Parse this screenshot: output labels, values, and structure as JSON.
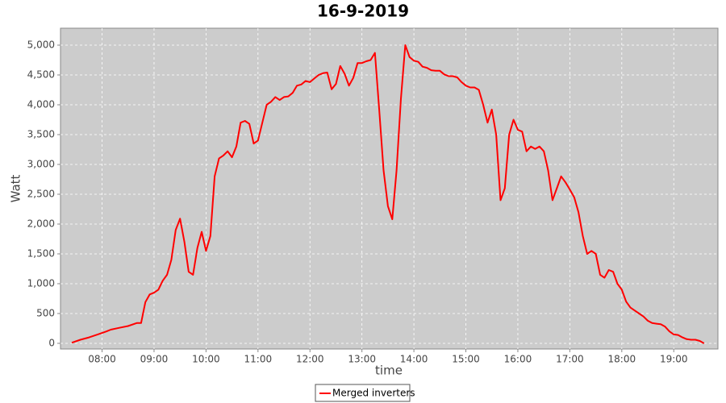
{
  "chart_data": {
    "type": "line",
    "title": "16-9-2019",
    "x_label": "time",
    "y_label": "Watt",
    "x": [
      "07:25",
      "07:35",
      "07:45",
      "07:55",
      "08:05",
      "08:10",
      "08:20",
      "08:30",
      "08:40",
      "08:45",
      "08:50",
      "08:55",
      "09:00",
      "09:05",
      "09:10",
      "09:15",
      "09:20",
      "09:25",
      "09:30",
      "09:35",
      "09:40",
      "09:45",
      "09:50",
      "09:55",
      "10:00",
      "10:05",
      "10:10",
      "10:15",
      "10:20",
      "10:25",
      "10:30",
      "10:35",
      "10:40",
      "10:45",
      "10:50",
      "10:55",
      "11:00",
      "11:05",
      "11:10",
      "11:15",
      "11:20",
      "11:25",
      "11:30",
      "11:35",
      "11:40",
      "11:45",
      "11:50",
      "11:55",
      "12:00",
      "12:05",
      "12:10",
      "12:15",
      "12:20",
      "12:25",
      "12:30",
      "12:35",
      "12:40",
      "12:45",
      "12:50",
      "12:55",
      "13:00",
      "13:05",
      "13:10",
      "13:15",
      "13:20",
      "13:25",
      "13:30",
      "13:35",
      "13:40",
      "13:45",
      "13:50",
      "13:55",
      "14:00",
      "14:05",
      "14:10",
      "14:15",
      "14:20",
      "14:25",
      "14:30",
      "14:35",
      "14:40",
      "14:45",
      "14:50",
      "14:55",
      "15:00",
      "15:05",
      "15:10",
      "15:15",
      "15:20",
      "15:25",
      "15:30",
      "15:35",
      "15:40",
      "15:45",
      "15:50",
      "15:55",
      "16:00",
      "16:05",
      "16:10",
      "16:15",
      "16:20",
      "16:25",
      "16:30",
      "16:35",
      "16:40",
      "16:45",
      "16:50",
      "16:55",
      "17:00",
      "17:05",
      "17:10",
      "17:15",
      "17:20",
      "17:25",
      "17:30",
      "17:35",
      "17:40",
      "17:45",
      "17:50",
      "17:55",
      "18:00",
      "18:05",
      "18:10",
      "18:15",
      "18:20",
      "18:25",
      "18:30",
      "18:35",
      "18:40",
      "18:45",
      "18:50",
      "18:55",
      "19:00",
      "19:05",
      "19:10",
      "19:15",
      "19:20",
      "19:25",
      "19:30",
      "19:35"
    ],
    "series": [
      {
        "name": "Merged inverters",
        "color": "#ff0000",
        "values": [
          10,
          60,
          100,
          150,
          200,
          230,
          260,
          290,
          340,
          340,
          690,
          820,
          850,
          900,
          1050,
          1150,
          1400,
          1900,
          2090,
          1700,
          1200,
          1150,
          1600,
          1870,
          1550,
          1800,
          2800,
          3100,
          3150,
          3220,
          3120,
          3300,
          3700,
          3730,
          3680,
          3350,
          3400,
          3700,
          4000,
          4050,
          4130,
          4080,
          4130,
          4140,
          4200,
          4320,
          4340,
          4400,
          4380,
          4440,
          4500,
          4530,
          4540,
          4260,
          4350,
          4650,
          4520,
          4320,
          4450,
          4700,
          4700,
          4730,
          4750,
          4870,
          3900,
          2900,
          2300,
          2080,
          2900,
          4100,
          5000,
          4800,
          4740,
          4720,
          4640,
          4620,
          4580,
          4570,
          4570,
          4510,
          4480,
          4480,
          4460,
          4380,
          4320,
          4290,
          4290,
          4250,
          4000,
          3700,
          3920,
          3500,
          2400,
          2600,
          3500,
          3750,
          3580,
          3550,
          3220,
          3300,
          3260,
          3300,
          3220,
          2900,
          2400,
          2600,
          2800,
          2700,
          2580,
          2450,
          2200,
          1800,
          1500,
          1550,
          1500,
          1150,
          1100,
          1230,
          1200,
          1000,
          900,
          700,
          600,
          550,
          500,
          450,
          380,
          340,
          330,
          320,
          280,
          200,
          150,
          140,
          100,
          70,
          60,
          60,
          40,
          0
        ]
      }
    ],
    "xlim": [
      "07:12",
      "19:51"
    ],
    "xticks": [
      "08:00",
      "09:00",
      "10:00",
      "11:00",
      "12:00",
      "13:00",
      "14:00",
      "15:00",
      "16:00",
      "17:00",
      "18:00",
      "19:00"
    ],
    "ylim": [
      -95,
      5284
    ],
    "yticks": [
      0,
      500,
      {
        "value": 1000,
        "label": "1,000"
      },
      {
        "value": 1500,
        "label": "1,500"
      },
      {
        "value": 2000,
        "label": "2,000"
      },
      {
        "value": 2500,
        "label": "2,500"
      },
      {
        "value": 3000,
        "label": "3,000"
      },
      {
        "value": 3500,
        "label": "3,500"
      },
      {
        "value": 4000,
        "label": "4,000"
      },
      {
        "value": 4500,
        "label": "4,500"
      },
      {
        "value": 5000,
        "label": "5,000"
      }
    ],
    "grid": true,
    "legend": "bottom"
  }
}
